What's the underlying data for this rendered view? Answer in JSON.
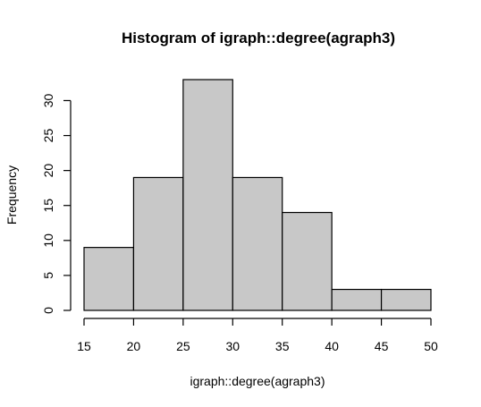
{
  "chart_data": {
    "type": "bar",
    "subtype": "histogram",
    "title": "Histogram of igraph::degree(agraph3)",
    "xlabel": "igraph::degree(agraph3)",
    "ylabel": "Frequency",
    "bins": [
      {
        "start": 15,
        "end": 20,
        "count": 9
      },
      {
        "start": 20,
        "end": 25,
        "count": 19
      },
      {
        "start": 25,
        "end": 30,
        "count": 33
      },
      {
        "start": 30,
        "end": 35,
        "count": 19
      },
      {
        "start": 35,
        "end": 40,
        "count": 14
      },
      {
        "start": 40,
        "end": 45,
        "count": 3
      },
      {
        "start": 45,
        "end": 50,
        "count": 3
      }
    ],
    "x_ticks": [
      "15",
      "20",
      "25",
      "30",
      "35",
      "40",
      "45",
      "50"
    ],
    "y_ticks": [
      "0",
      "5",
      "10",
      "15",
      "20",
      "25",
      "30"
    ],
    "xlim": [
      15,
      50
    ],
    "ylim": [
      0,
      33
    ],
    "grid": false,
    "legend": "none",
    "bar_fill": "#c8c8c8",
    "bar_stroke": "#000000"
  }
}
